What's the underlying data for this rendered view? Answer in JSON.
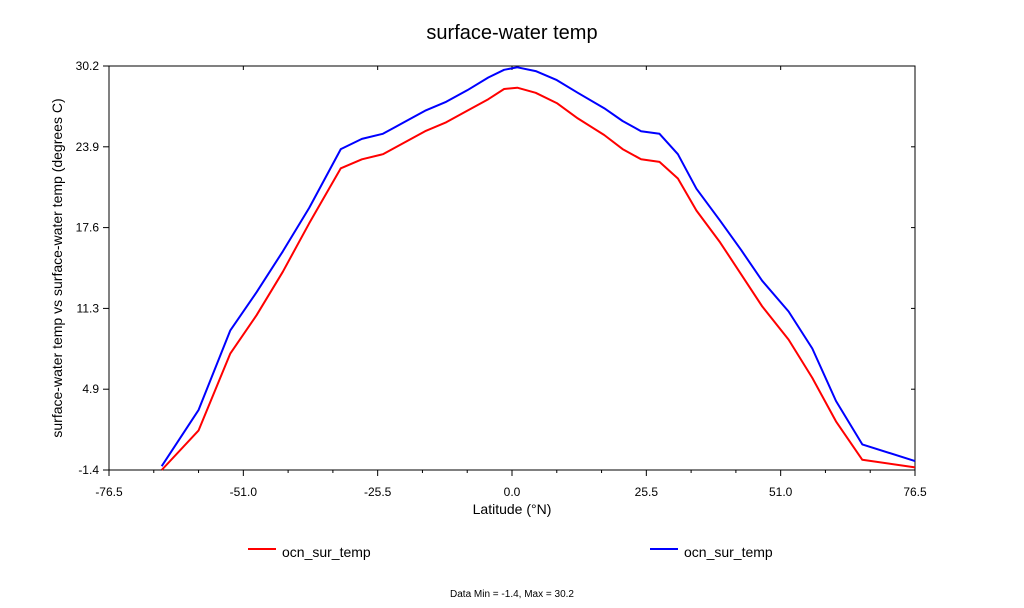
{
  "chart_data": {
    "type": "line",
    "title": "surface-water temp",
    "xlabel": "Latitude (°N)",
    "ylabel": "surface-water temp vs surface-water temp (degrees C)",
    "xlim": [
      -76.5,
      76.5
    ],
    "ylim": [
      -1.4,
      30.2
    ],
    "xticks": [
      "-76.5",
      "-51.0",
      "-25.5",
      "0.0",
      "25.5",
      "51.0",
      "76.5"
    ],
    "yticks": [
      "-1.4",
      "4.9",
      "11.3",
      "17.6",
      "23.9",
      "30.2"
    ],
    "grid": false,
    "legend_position": "bottom",
    "series": [
      {
        "name": "ocn_sur_temp",
        "color": "#ff0000",
        "x": [
          -66.5,
          -59.5,
          -53.5,
          -48.5,
          -43.5,
          -38.5,
          -32.5,
          -28.5,
          -24.5,
          -20.5,
          -16.5,
          -12.5,
          -8.5,
          -4.5,
          -1.5,
          1.0,
          4.5,
          8.5,
          12.5,
          17.5,
          21.0,
          24.5,
          28.0,
          31.5,
          35.0,
          39.5,
          43.5,
          47.5,
          52.5,
          57.0,
          61.5,
          66.5,
          76.5
        ],
        "y": [
          -1.4,
          1.7,
          7.7,
          10.7,
          14.1,
          17.9,
          22.2,
          22.9,
          23.3,
          24.2,
          25.1,
          25.8,
          26.7,
          27.6,
          28.4,
          28.5,
          28.1,
          27.3,
          26.1,
          24.8,
          23.7,
          22.9,
          22.7,
          21.4,
          18.9,
          16.4,
          13.9,
          11.4,
          8.8,
          5.8,
          2.4,
          -0.6,
          -1.2
        ]
      },
      {
        "name": "ocn_sur_temp",
        "color": "#0000ff",
        "x": [
          -66.5,
          -59.5,
          -53.5,
          -48.5,
          -43.5,
          -38.5,
          -32.5,
          -28.5,
          -24.5,
          -20.5,
          -16.5,
          -12.5,
          -8.5,
          -4.5,
          -1.5,
          1.0,
          4.5,
          8.5,
          12.5,
          17.5,
          21.0,
          24.5,
          28.0,
          31.5,
          35.0,
          39.5,
          43.5,
          47.5,
          52.5,
          57.0,
          61.5,
          66.5,
          76.5
        ],
        "y": [
          -1.1,
          3.3,
          9.5,
          12.5,
          15.7,
          19.1,
          23.7,
          24.5,
          24.9,
          25.8,
          26.7,
          27.4,
          28.3,
          29.3,
          29.9,
          30.1,
          29.8,
          29.1,
          28.1,
          26.9,
          25.9,
          25.1,
          24.9,
          23.3,
          20.6,
          18.1,
          15.8,
          13.4,
          11.0,
          8.1,
          4.0,
          0.6,
          -0.7
        ]
      }
    ],
    "footer": "Data Min = -1.4, Max = 30.2"
  }
}
